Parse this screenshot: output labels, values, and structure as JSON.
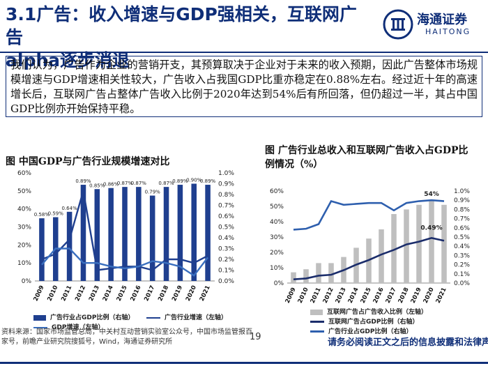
{
  "header": {
    "title_line1": "3.1广告：收入增速与GDP强相关，互联网广告",
    "title_line2": "alpha逐步消退",
    "logo_cn": "海通证券",
    "logo_en": "HAITONG",
    "brand_color": "#0f2e78"
  },
  "summary": "我们认为，广告作为企业的营销开支，其预算取决于企业对于未来的收入预期，因此广告整体市场规模增速与GDP增速相关性较大，广告收入占我国GDP比重亦稳定在0.88%左右。经过近十年的高速增长后，互联网广告占整体广告收入比例于2020年达到54%后有所回落，但仍超过一半，其占中国GDP比例亦开始保持平稳。",
  "chart_data": [
    {
      "type": "bar",
      "title": "图 中国GDP与广告行业规模增速对比",
      "categories": [
        "2009",
        "2010",
        "2011",
        "2012",
        "2013",
        "2014",
        "2015",
        "2016",
        "2017",
        "2018",
        "2019",
        "2020",
        "2021"
      ],
      "series": [
        {
          "name": "广告行业占GDP比例（右轴）",
          "type": "bar",
          "axis": "right",
          "values": [
            0.58,
            0.59,
            0.64,
            0.89,
            0.85,
            0.86,
            0.87,
            0.87,
            0.79,
            0.87,
            0.89,
            0.9,
            0.89
          ],
          "labels": [
            "0.58%",
            "0.59%",
            "0.64%",
            "0.89%",
            "0.85%",
            "0.86%",
            "0.87%",
            "0.87%",
            "0.79%",
            "0.87%",
            "0.89%",
            "0.90%",
            "0.89%"
          ],
          "color": "#1f3f8f"
        },
        {
          "name": "广告行业增速（左轴）",
          "type": "line",
          "axis": "left",
          "values": [
            12,
            15,
            23,
            50,
            6,
            7,
            8,
            8,
            6,
            12,
            12,
            10,
            14
          ],
          "color": "#1f3f8f"
        },
        {
          "name": "GDP增速（左轴）",
          "type": "line",
          "axis": "left",
          "values": [
            9,
            18,
            18,
            10,
            10,
            8,
            7,
            8,
            11,
            10,
            8,
            3,
            13
          ],
          "color": "#3a6fbf"
        }
      ],
      "ylim_left": [
        0,
        60
      ],
      "yticks_left": [
        "0%",
        "10%",
        "20%",
        "30%",
        "40%",
        "50%",
        "60%"
      ],
      "ylim_right": [
        0,
        1.0
      ],
      "yticks_right": [
        "0.0%",
        "0.1%",
        "0.2%",
        "0.3%",
        "0.4%",
        "0.5%",
        "0.6%",
        "0.7%",
        "0.8%",
        "0.9%",
        "1.0%"
      ]
    },
    {
      "type": "bar",
      "title": "图 广告行业总收入和互联网广告收入占GDP比例情况（%）",
      "categories": [
        "2009",
        "2010",
        "2011",
        "2012",
        "2013",
        "2014",
        "2015",
        "2016",
        "2017",
        "2018",
        "2019",
        "2020",
        "2021"
      ],
      "series": [
        {
          "name": "互联网广告占广告收入比例（左轴）",
          "type": "bar",
          "axis": "left",
          "values": [
            7,
            9,
            13,
            13,
            17,
            23,
            29,
            35,
            45,
            48,
            51,
            54,
            51
          ],
          "color": "#bfbfbf"
        },
        {
          "name": "互联网广告占GDP比例（右轴）",
          "type": "line",
          "axis": "right",
          "values": [
            0.04,
            0.05,
            0.08,
            0.09,
            0.14,
            0.2,
            0.25,
            0.31,
            0.36,
            0.42,
            0.45,
            0.49,
            0.46
          ],
          "color": "#1b2d6b"
        },
        {
          "name": "广告行业占GDP比例（右轴）",
          "type": "line",
          "axis": "right",
          "values": [
            0.58,
            0.59,
            0.64,
            0.89,
            0.85,
            0.86,
            0.87,
            0.87,
            0.79,
            0.87,
            0.89,
            0.9,
            0.89
          ],
          "color": "#2e5fae"
        }
      ],
      "annotations": [
        "54%",
        "0.49%"
      ],
      "ylim_left": [
        0,
        60
      ],
      "yticks_left": [
        "0%",
        "10%",
        "20%",
        "30%",
        "40%",
        "50%",
        "60%"
      ],
      "ylim_right": [
        0,
        1.0
      ],
      "yticks_right": [
        "0.0%",
        "0.1%",
        "0.2%",
        "0.3%",
        "0.4%",
        "0.5%",
        "0.6%",
        "0.7%",
        "0.8%",
        "0.9%",
        "1.0%"
      ]
    }
  ],
  "legends": {
    "c1": [
      "广告行业占GDP比例（右轴）",
      "广告行业增速（左轴）",
      "GDP增速（左轴）"
    ],
    "c2": [
      "互联网广告占广告收入比例（左轴）",
      "互联网广告占GDP比例（右轴）",
      "广告行业占GDP比例（右轴）"
    ]
  },
  "footer": {
    "source": "资料来源：国家市场监管总局，中关村互动营销实验室公众号，中国市场监管报百家号，前瞻产业研究院搜狐号，Wind，海通证券研究所",
    "page": "19",
    "disclaimer": "请务必阅读正文之后的信息披露和法律声明"
  }
}
